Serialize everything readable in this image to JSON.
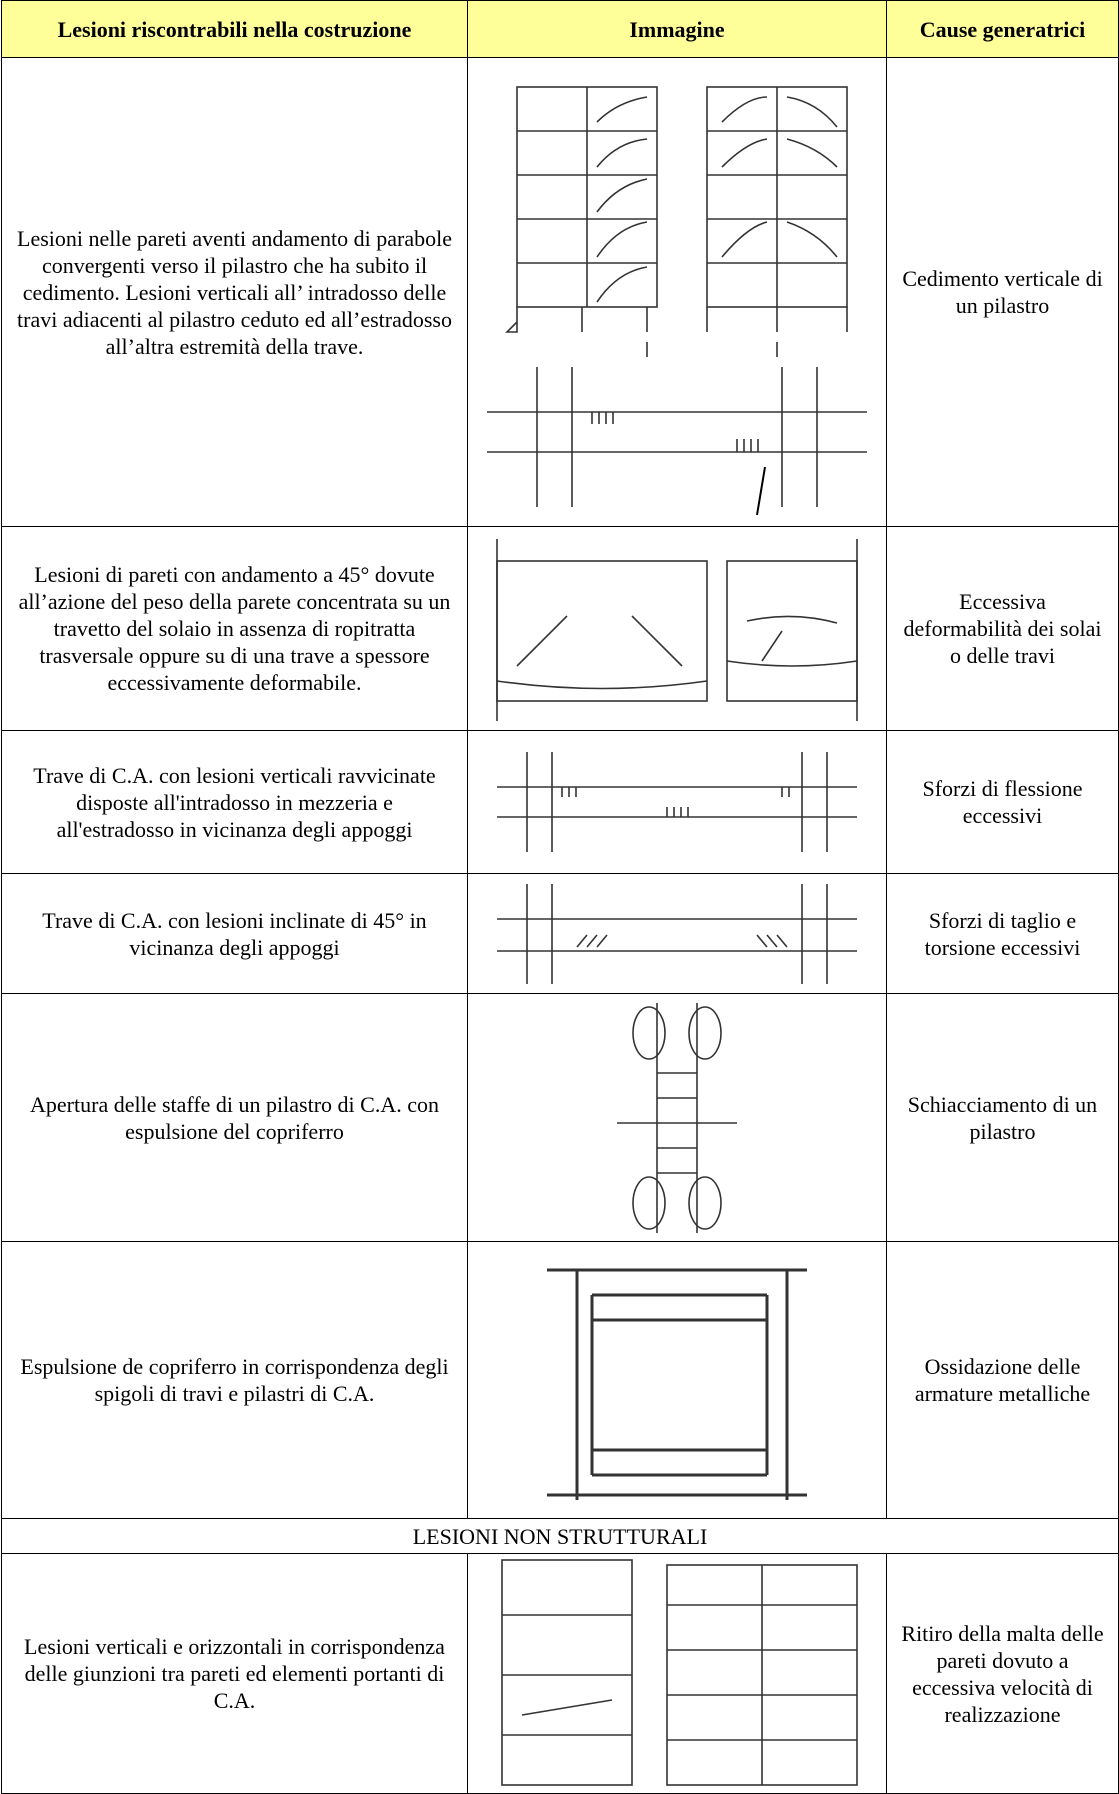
{
  "table": {
    "header": [
      "Lesioni riscontrabili nella costruzione",
      "Immagine",
      "Cause generatrici"
    ],
    "rows": [
      {
        "description": "Lesioni nelle pareti aventi andamento di parabole convergenti verso il pilastro che ha subito il cedimento. Lesioni verticali all’ intradosso delle travi adiacenti al pilastro ceduto ed all’estradosso all’altra estremità della trave.",
        "cause": "Cedimento verticale di un pilastro"
      },
      {
        "description": "Lesioni di pareti con andamento a 45° dovute all’azione del peso della parete concentrata su un travetto del solaio in assenza di ropitratta trasversale oppure su di una trave a spessore eccessivamente deformabile.",
        "cause": "Eccessiva deformabilità dei solai o delle travi"
      },
      {
        "description": "Trave di C.A. con lesioni verticali ravvicinate disposte all'intradosso in mezzeria e all'estradosso in vicinanza degli appoggi",
        "cause": "Sforzi di flessione eccessivi"
      },
      {
        "description": "Trave di C.A. con lesioni inclinate di 45° in vicinanza degli appoggi",
        "cause": "Sforzi di taglio e torsione eccessivi"
      },
      {
        "description": "Apertura delle staffe di un pilastro di C.A. con espulsione del copriferro",
        "cause": "Schiacciamento di un pilastro"
      },
      {
        "description": "Espulsione de copriferro in corrispondenza degli spigoli di travi e pilastri di C.A.",
        "cause": "Ossidazione delle armature metalliche"
      }
    ],
    "section": "LESIONI NON STRUTTURALI",
    "non_structural_rows": [
      {
        "description": "Lesioni verticali e orizzontali in corrispondenza delle giunzioni tra pareti ed elementi portanti di C.A.",
        "cause": "Ritiro della malta delle pareti dovuto a eccessiva velocità di realizzazione"
      }
    ]
  }
}
